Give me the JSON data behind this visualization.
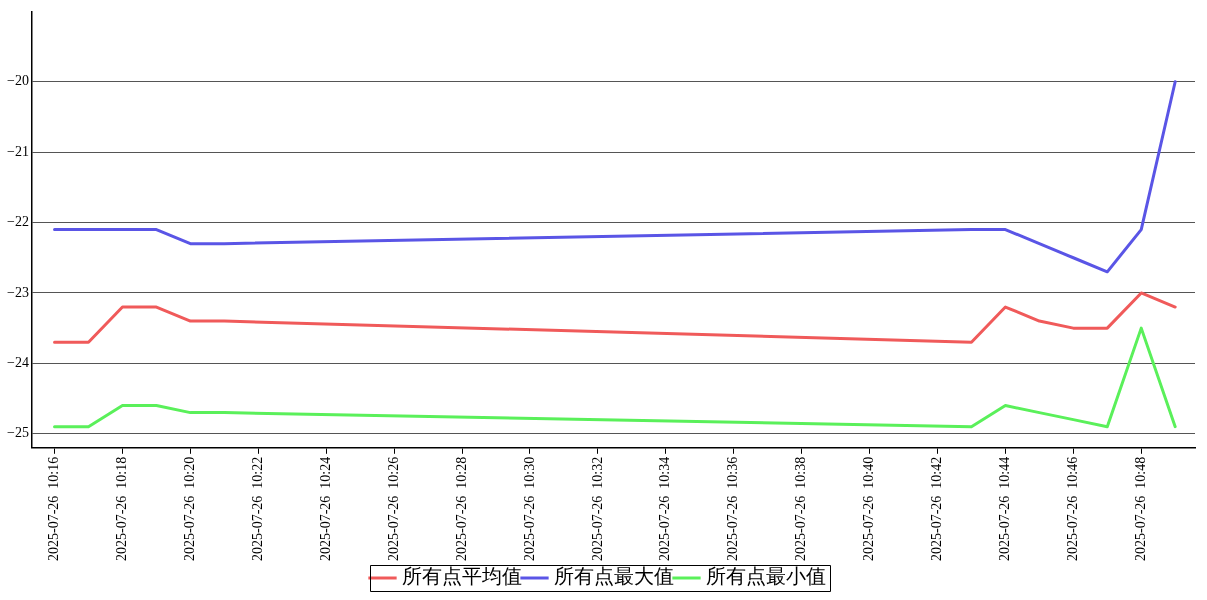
{
  "chart_data": {
    "type": "line",
    "x": [
      "2025-07-26T10:16",
      "2025-07-26T10:17",
      "2025-07-26T10:18",
      "2025-07-26T10:19",
      "2025-07-26T10:20",
      "2025-07-26T10:21",
      "2025-07-26T10:43",
      "2025-07-26T10:44",
      "2025-07-26T10:45",
      "2025-07-26T10:46",
      "2025-07-26T10:47",
      "2025-07-26T10:48",
      "2025-07-26T10:49"
    ],
    "series": [
      {
        "name": "所有点平均值",
        "color": "#f05a5a",
        "values": [
          -23.7,
          -23.7,
          -23.2,
          -23.2,
          -23.4,
          -23.4,
          -23.7,
          -23.2,
          -23.4,
          -23.5,
          -23.5,
          -23.0,
          -23.2
        ]
      },
      {
        "name": "所有点最大值",
        "color": "#5a55e6",
        "values": [
          -22.1,
          -22.1,
          -22.1,
          -22.1,
          -22.3,
          -22.3,
          -22.1,
          -22.1,
          -22.3,
          -22.5,
          -22.7,
          -22.1,
          -20.0
        ]
      },
      {
        "name": "所有点最小值",
        "color": "#5af05a",
        "values": [
          -24.9,
          -24.9,
          -24.6,
          -24.6,
          -24.7,
          -24.7,
          -24.9,
          -24.6,
          -24.7,
          -24.8,
          -24.9,
          -23.5,
          -24.9
        ]
      }
    ],
    "xlim": [
      "2025-07-26T10:15:20",
      "2025-07-26T10:49:35"
    ],
    "xticks": [
      {
        "value": "2025-07-26T10:16",
        "label": "2025-07-26  10:16"
      },
      {
        "value": "2025-07-26T10:18",
        "label": "2025-07-26  10:18"
      },
      {
        "value": "2025-07-26T10:20",
        "label": "2025-07-26  10:20"
      },
      {
        "value": "2025-07-26T10:22",
        "label": "2025-07-26  10:22"
      },
      {
        "value": "2025-07-26T10:24",
        "label": "2025-07-26  10:24"
      },
      {
        "value": "2025-07-26T10:26",
        "label": "2025-07-26  10:26"
      },
      {
        "value": "2025-07-26T10:28",
        "label": "2025-07-26  10:28"
      },
      {
        "value": "2025-07-26T10:30",
        "label": "2025-07-26  10:30"
      },
      {
        "value": "2025-07-26T10:32",
        "label": "2025-07-26  10:32"
      },
      {
        "value": "2025-07-26T10:34",
        "label": "2025-07-26  10:34"
      },
      {
        "value": "2025-07-26T10:36",
        "label": "2025-07-26  10:36"
      },
      {
        "value": "2025-07-26T10:38",
        "label": "2025-07-26  10:38"
      },
      {
        "value": "2025-07-26T10:40",
        "label": "2025-07-26  10:40"
      },
      {
        "value": "2025-07-26T10:42",
        "label": "2025-07-26  10:42"
      },
      {
        "value": "2025-07-26T10:44",
        "label": "2025-07-26  10:44"
      },
      {
        "value": "2025-07-26T10:46",
        "label": "2025-07-26  10:46"
      },
      {
        "value": "2025-07-26T10:48",
        "label": "2025-07-26  10:48"
      }
    ],
    "ylim": [
      -25.2,
      -19.0
    ],
    "yticks": [
      -25,
      -24,
      -23,
      -22,
      -21,
      -20
    ],
    "grid": "y",
    "legend": "bottom",
    "marker": "none",
    "line_style": "solid"
  }
}
